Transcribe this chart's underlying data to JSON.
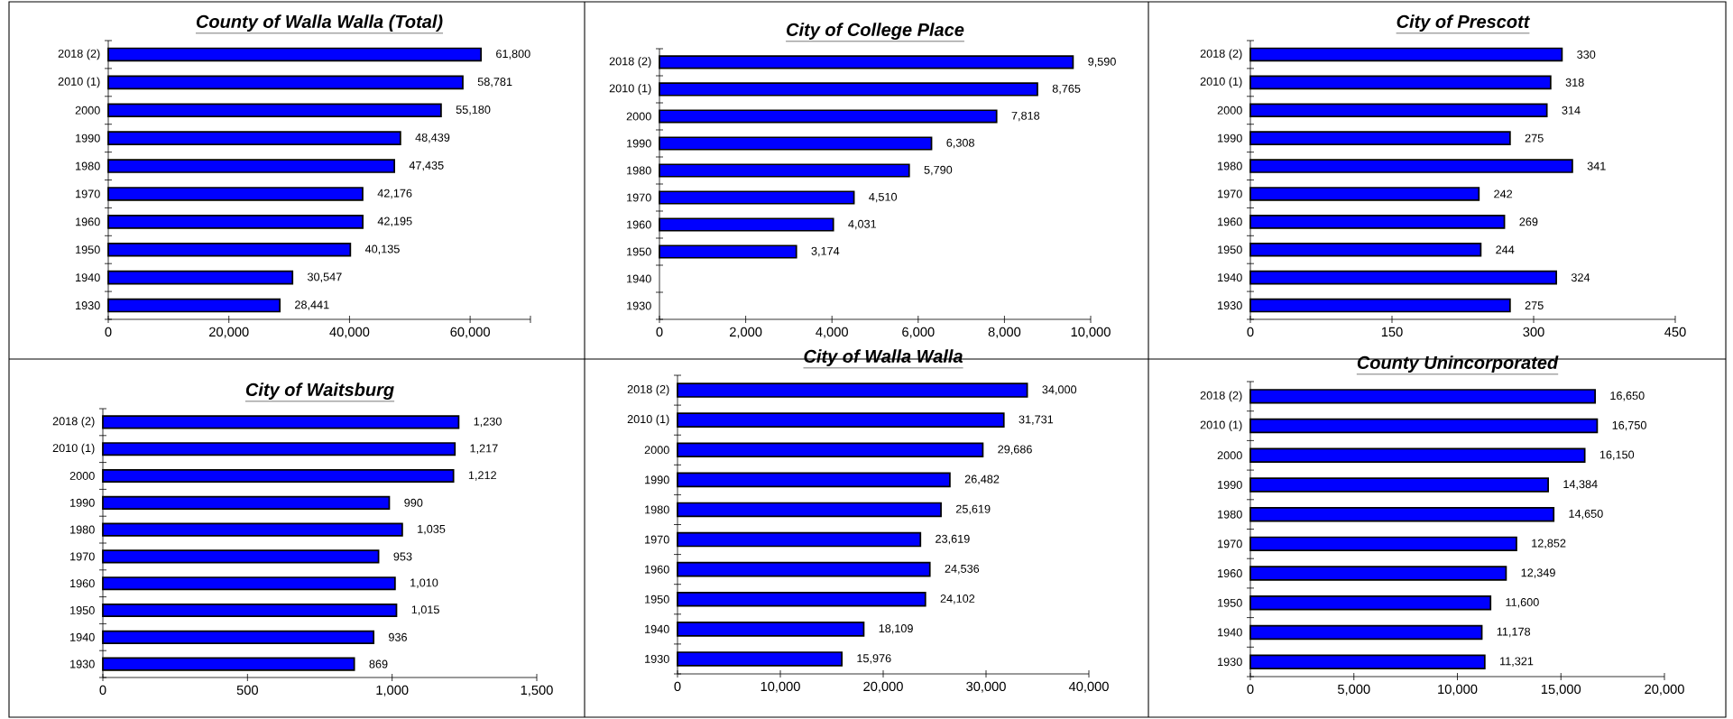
{
  "chart_data": [
    {
      "type": "bar",
      "orientation": "horizontal",
      "title": "County of Walla Walla (Total)",
      "categories": [
        "2018 (2)",
        "2010 (1)",
        "2000",
        "1990",
        "1980",
        "1970",
        "1960",
        "1950",
        "1940",
        "1930"
      ],
      "values": [
        61800,
        58781,
        55180,
        48439,
        47435,
        42176,
        42195,
        40135,
        30547,
        28441
      ],
      "value_labels": [
        "61,800",
        "58,781",
        "55,180",
        "48,439",
        "47,435",
        "42,176",
        "42,195",
        "40,135",
        "30,547",
        "28,441"
      ],
      "color": "#0000ff",
      "xlim": [
        0,
        70000
      ],
      "xticks": [
        0,
        {
          "value": 20000,
          "label": "20,000"
        },
        {
          "value": 40000,
          "label": "40,000"
        },
        {
          "value": 60000,
          "label": "60,000"
        },
        {
          "value": 70000,
          "label": null
        }
      ]
    },
    {
      "type": "bar",
      "orientation": "horizontal",
      "title": "City of College Place",
      "categories": [
        "2018 (2)",
        "2010 (1)",
        "2000",
        "1990",
        "1980",
        "1970",
        "1960",
        "1950",
        "1940",
        "1930"
      ],
      "values": [
        9590,
        8765,
        7818,
        6308,
        5790,
        4510,
        4031,
        3174,
        null,
        null
      ],
      "value_labels": [
        "9,590",
        "8,765",
        "7,818",
        "6,308",
        "5,790",
        "4,510",
        "4,031",
        "3,174",
        null,
        null
      ],
      "color": "#0000ff",
      "xlim": [
        0,
        10000
      ],
      "xticks": [
        0,
        {
          "value": 2000,
          "label": "2,000"
        },
        {
          "value": 4000,
          "label": "4,000"
        },
        {
          "value": 6000,
          "label": "6,000"
        },
        {
          "value": 8000,
          "label": "8,000"
        },
        {
          "value": 10000,
          "label": "10,000"
        }
      ]
    },
    {
      "type": "bar",
      "orientation": "horizontal",
      "title": "City of Prescott",
      "categories": [
        "2018 (2)",
        "2010 (1)",
        "2000",
        "1990",
        "1980",
        "1970",
        "1960",
        "1950",
        "1940",
        "1930"
      ],
      "values": [
        330,
        318,
        314,
        275,
        341,
        242,
        269,
        244,
        324,
        275
      ],
      "value_labels": [
        "330",
        "318",
        "314",
        "275",
        "341",
        "242",
        "269",
        "244",
        "324",
        "275"
      ],
      "color": "#0000ff",
      "xlim": [
        0,
        450
      ],
      "xticks": [
        0,
        150,
        300,
        450
      ]
    },
    {
      "type": "bar",
      "orientation": "horizontal",
      "title": "City of Waitsburg",
      "categories": [
        "2018 (2)",
        "2010 (1)",
        "2000",
        "1990",
        "1980",
        "1970",
        "1960",
        "1950",
        "1940",
        "1930"
      ],
      "values": [
        1230,
        1217,
        1212,
        990,
        1035,
        953,
        1010,
        1015,
        936,
        869
      ],
      "value_labels": [
        "1,230",
        "1,217",
        "1,212",
        "990",
        "1,035",
        "953",
        "1,010",
        "1,015",
        "936",
        "869"
      ],
      "color": "#0000ff",
      "xlim": [
        0,
        1500
      ],
      "xticks": [
        0,
        500,
        {
          "value": 1000,
          "label": "1,000"
        },
        {
          "value": 1500,
          "label": "1,500"
        }
      ]
    },
    {
      "type": "bar",
      "orientation": "horizontal",
      "title": "City of Walla Walla",
      "categories": [
        "2018 (2)",
        "2010 (1)",
        "2000",
        "1990",
        "1980",
        "1970",
        "1960",
        "1950",
        "1940",
        "1930"
      ],
      "values": [
        34000,
        31731,
        29686,
        26482,
        25619,
        23619,
        24536,
        24102,
        18109,
        15976
      ],
      "value_labels": [
        "34,000",
        "31,731",
        "29,686",
        "26,482",
        "25,619",
        "23,619",
        "24,536",
        "24,102",
        "18,109",
        "15,976"
      ],
      "color": "#0000ff",
      "xlim": [
        0,
        40000
      ],
      "xticks": [
        0,
        {
          "value": 10000,
          "label": "10,000"
        },
        {
          "value": 20000,
          "label": "20,000"
        },
        {
          "value": 30000,
          "label": "30,000"
        },
        {
          "value": 40000,
          "label": "40,000"
        }
      ]
    },
    {
      "type": "bar",
      "orientation": "horizontal",
      "title": "County Unincorporated",
      "categories": [
        "2018 (2)",
        "2010 (1)",
        "2000",
        "1990",
        "1980",
        "1970",
        "1960",
        "1950",
        "1940",
        "1930"
      ],
      "values": [
        16650,
        16750,
        16150,
        14384,
        14650,
        12852,
        12349,
        11600,
        11178,
        11321
      ],
      "value_labels": [
        "16,650",
        "16,750",
        "16,150",
        "14,384",
        "14,650",
        "12,852",
        "12,349",
        "11,600",
        "11,178",
        "11,321"
      ],
      "color": "#0000ff",
      "xlim": [
        0,
        20000
      ],
      "xticks": [
        0,
        {
          "value": 5000,
          "label": "5,000"
        },
        {
          "value": 10000,
          "label": "10,000"
        },
        {
          "value": 15000,
          "label": "15,000"
        },
        {
          "value": 20000,
          "label": "20,000"
        }
      ]
    }
  ]
}
